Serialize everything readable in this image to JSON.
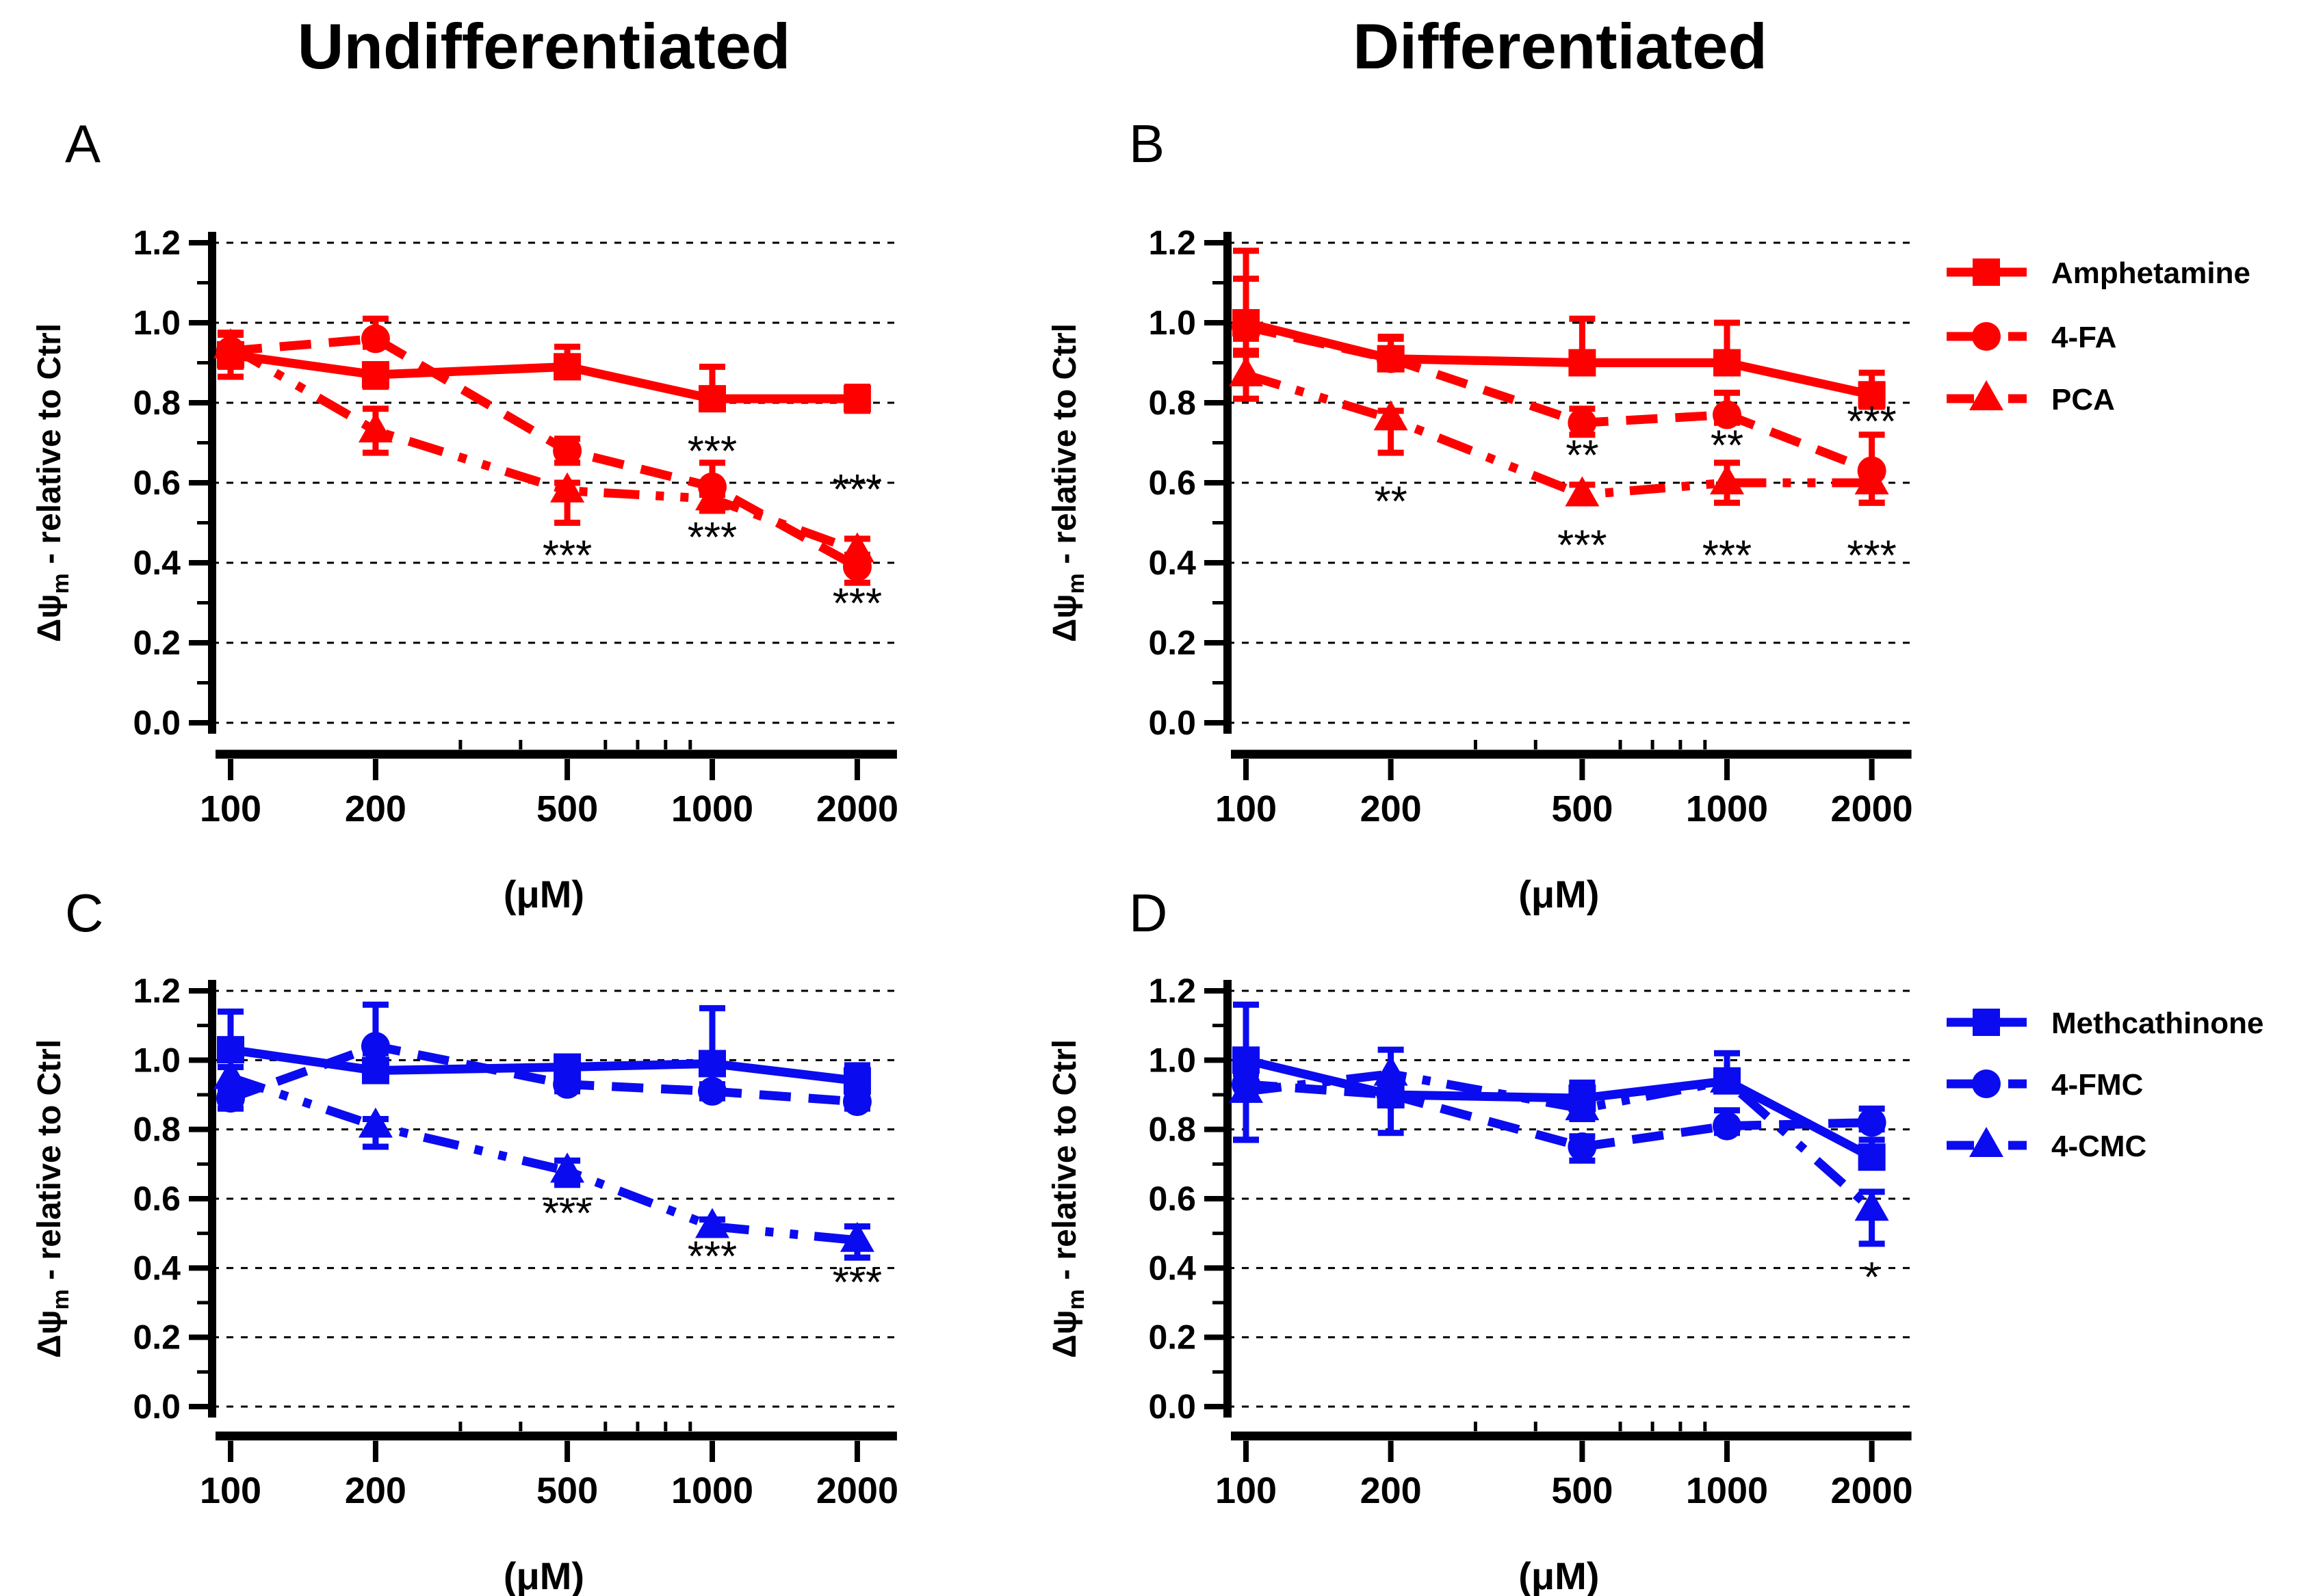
{
  "figure": {
    "column_titles": [
      "Undifferentiated",
      "Differentiated"
    ],
    "panel_letters": [
      "A",
      "B",
      "C",
      "D"
    ],
    "colors": {
      "red": "#ff0000",
      "blue": "#0b0bf0",
      "axis": "#000000"
    }
  },
  "chart_data": [
    {
      "id": "A",
      "type": "line",
      "letter": "A",
      "column_title": "Undifferentiated",
      "color": "#ff0000",
      "xscale": "log",
      "x": [
        100,
        200,
        500,
        1000,
        2000
      ],
      "xlabel": "(μM)",
      "ylabel": {
        "pre": "Δψ",
        "sub": "m",
        "post": " - relative to Ctrl"
      },
      "ylim": [
        0,
        1.2
      ],
      "ytick_step": 0.2,
      "grid": "dashed",
      "show_legend": false,
      "series": [
        {
          "name": "Amphetamine",
          "marker": "square",
          "line": "solid",
          "values": [
            0.92,
            0.87,
            0.89,
            0.81,
            0.81
          ],
          "err_up": [
            0.055,
            0.02,
            0.05,
            0.08,
            0.03
          ],
          "err_dn": [
            0.055,
            0.03,
            0.02,
            0.02,
            0.03
          ]
        },
        {
          "name": "4-FA",
          "marker": "circle",
          "line": "dashed",
          "values": [
            0.93,
            0.96,
            0.68,
            0.59,
            0.39
          ],
          "err_up": [
            0.04,
            0.05,
            0.03,
            0.06,
            0.03
          ],
          "err_dn": [
            0.04,
            0.02,
            0.03,
            0.02,
            0.04
          ]
        },
        {
          "name": "PCA",
          "marker": "triangle",
          "line": "dashdotdot",
          "values": [
            0.94,
            0.73,
            0.58,
            0.56,
            0.43
          ],
          "err_up": [
            0.035,
            0.055,
            0.02,
            0.02,
            0.03
          ],
          "err_dn": [
            0.03,
            0.055,
            0.08,
            0.03,
            0.03
          ]
        }
      ],
      "annotations": [
        {
          "x": 500,
          "y": 0.42,
          "text": "***"
        },
        {
          "x": 1000,
          "y": 0.68,
          "text": "***"
        },
        {
          "x": 1000,
          "y": 0.465,
          "text": "***"
        },
        {
          "x": 2000,
          "y": 0.585,
          "text": "***"
        },
        {
          "x": 2000,
          "y": 0.3,
          "text": "***"
        }
      ]
    },
    {
      "id": "B",
      "type": "line",
      "letter": "B",
      "column_title": "Differentiated",
      "color": "#ff0000",
      "xscale": "log",
      "x": [
        100,
        200,
        500,
        1000,
        2000
      ],
      "xlabel": "(μM)",
      "ylabel": {
        "pre": "Δψ",
        "sub": "m",
        "post": " - relative to Ctrl"
      },
      "ylim": [
        0,
        1.2
      ],
      "ytick_step": 0.2,
      "grid": "dashed",
      "show_legend": true,
      "series": [
        {
          "name": "Amphetamine",
          "marker": "square",
          "line": "solid",
          "values": [
            1.0,
            0.91,
            0.9,
            0.9,
            0.82
          ],
          "err_up": [
            0.18,
            0.055,
            0.11,
            0.1,
            0.055
          ],
          "err_dn": [
            0.07,
            0.02,
            0.02,
            0.02,
            0.03
          ]
        },
        {
          "name": "4-FA",
          "marker": "circle",
          "line": "dashed",
          "values": [
            0.99,
            0.91,
            0.75,
            0.77,
            0.63
          ],
          "err_up": [
            0.12,
            0.05,
            0.035,
            0.055,
            0.09
          ],
          "err_dn": [
            0.03,
            0.02,
            0.03,
            0.02,
            0.08
          ]
        },
        {
          "name": "PCA",
          "marker": "triangle",
          "line": "dashdotdot",
          "values": [
            0.87,
            0.76,
            0.57,
            0.6,
            0.6
          ],
          "err_up": [
            0.05,
            0.02,
            0.025,
            0.05,
            0.02
          ],
          "err_dn": [
            0.06,
            0.085,
            0.02,
            0.05,
            0.05
          ]
        }
      ],
      "annotations": [
        {
          "x": 200,
          "y": 0.555,
          "text": "**"
        },
        {
          "x": 500,
          "y": 0.67,
          "text": "**"
        },
        {
          "x": 500,
          "y": 0.445,
          "text": "***"
        },
        {
          "x": 1000,
          "y": 0.695,
          "text": "**"
        },
        {
          "x": 1000,
          "y": 0.42,
          "text": "***"
        },
        {
          "x": 2000,
          "y": 0.755,
          "text": "***"
        },
        {
          "x": 2000,
          "y": 0.42,
          "text": "***"
        }
      ]
    },
    {
      "id": "C",
      "type": "line",
      "letter": "C",
      "column_title": "Undifferentiated",
      "color": "#0b0bf0",
      "xscale": "log",
      "x": [
        100,
        200,
        500,
        1000,
        2000
      ],
      "xlabel": "(μM)",
      "ylabel": {
        "pre": "Δψ",
        "sub": "m",
        "post": " - relative to Ctrl"
      },
      "ylim": [
        0,
        1.2
      ],
      "ytick_step": 0.2,
      "grid": "dashed",
      "show_legend": false,
      "series": [
        {
          "name": "Methcathinone",
          "marker": "square",
          "line": "solid",
          "values": [
            1.03,
            0.97,
            0.98,
            0.99,
            0.94
          ],
          "err_up": [
            0.11,
            0.03,
            0.02,
            0.16,
            0.045
          ],
          "err_dn": [
            0.03,
            0.03,
            0.02,
            0.06,
            0.02
          ]
        },
        {
          "name": "4-FMC",
          "marker": "circle",
          "line": "dashed",
          "values": [
            0.89,
            1.04,
            0.93,
            0.91,
            0.88
          ],
          "err_up": [
            0.02,
            0.12,
            0.02,
            0.02,
            0.02
          ],
          "err_dn": [
            0.03,
            0.02,
            0.02,
            0.02,
            0.02
          ]
        },
        {
          "name": "4-CMC",
          "marker": "triangle",
          "line": "dashdotdot",
          "values": [
            0.95,
            0.81,
            0.68,
            0.52,
            0.48
          ],
          "err_up": [
            0.03,
            0.02,
            0.03,
            0.02,
            0.04
          ],
          "err_dn": [
            0.02,
            0.06,
            0.04,
            0.02,
            0.05
          ]
        }
      ],
      "annotations": [
        {
          "x": 500,
          "y": 0.56,
          "text": "***"
        },
        {
          "x": 1000,
          "y": 0.435,
          "text": "***"
        },
        {
          "x": 2000,
          "y": 0.36,
          "text": "***"
        }
      ]
    },
    {
      "id": "D",
      "type": "line",
      "letter": "D",
      "column_title": "Differentiated",
      "color": "#0b0bf0",
      "xscale": "log",
      "x": [
        100,
        200,
        500,
        1000,
        2000
      ],
      "xlabel": "(μM)",
      "ylabel": {
        "pre": "Δψ",
        "sub": "m",
        "post": " - relative to Ctrl"
      },
      "ylim": [
        0,
        1.2
      ],
      "ytick_step": 0.2,
      "grid": "dashed",
      "show_legend": true,
      "series": [
        {
          "name": "Methcathinone",
          "marker": "square",
          "line": "solid",
          "values": [
            1.0,
            0.9,
            0.89,
            0.94,
            0.72
          ],
          "err_up": [
            0.16,
            0.05,
            0.045,
            0.08,
            0.05
          ],
          "err_dn": [
            0.23,
            0.11,
            0.045,
            0.02,
            0.03
          ]
        },
        {
          "name": "4-FMC",
          "marker": "circle",
          "line": "dashed",
          "values": [
            0.93,
            0.9,
            0.75,
            0.81,
            0.82
          ],
          "err_up": [
            0.06,
            0.03,
            0.03,
            0.045,
            0.04
          ],
          "err_dn": [
            0.16,
            0.03,
            0.04,
            0.02,
            0.02
          ]
        },
        {
          "name": "4-CMC",
          "marker": "triangle",
          "line": "dashdotdot",
          "values": [
            0.91,
            0.96,
            0.86,
            0.94,
            0.57
          ],
          "err_up": [
            0.05,
            0.07,
            0.03,
            0.02,
            0.05
          ],
          "err_dn": [
            0.14,
            0.02,
            0.03,
            0.02,
            0.1
          ]
        }
      ],
      "annotations": [
        {
          "x": 2000,
          "y": 0.375,
          "text": "*"
        }
      ]
    }
  ]
}
